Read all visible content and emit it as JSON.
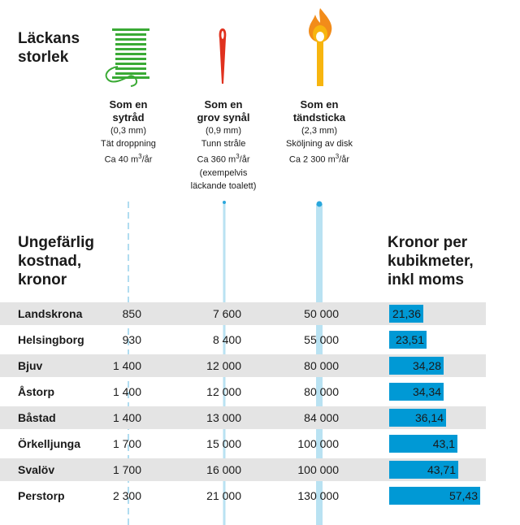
{
  "heading": {
    "leak_size_line1": "Läckans",
    "leak_size_line2": "storlek",
    "cost_line1": "Ungefärlig",
    "cost_line2": "kostnad,",
    "cost_line3": "kronor",
    "price_line1": "Kronor per",
    "price_line2": "kubikmeter,",
    "price_line3": "inkl moms"
  },
  "leak_types": [
    {
      "icon": "thread-spool-icon",
      "title_line1": "Som en",
      "title_line2": "sytråd",
      "size": "(0,3 mm)",
      "desc1": "Tät droppning",
      "desc2_prefix": "Ca 40 m",
      "desc2_sup": "3",
      "desc2_suffix": "/år",
      "desc3": "",
      "desc4": ""
    },
    {
      "icon": "needle-icon",
      "title_line1": "Som en",
      "title_line2": "grov synål",
      "size": "(0,9 mm)",
      "desc1": "Tunn stråle",
      "desc2_prefix": "Ca 360 m",
      "desc2_sup": "3",
      "desc2_suffix": "/år",
      "desc3": "(exempelvis",
      "desc4": "läckande toalett)"
    },
    {
      "icon": "match-icon",
      "title_line1": "Som en",
      "title_line2": "tändsticka",
      "size": "(2,3 mm)",
      "desc1": "Sköljning av disk",
      "desc2_prefix": "Ca 2 300 m",
      "desc2_sup": "3",
      "desc2_suffix": "/år",
      "desc3": "",
      "desc4": ""
    }
  ],
  "colors": {
    "thread_green": "#3aaa35",
    "needle_red": "#e0311e",
    "match_yellow": "#f7b50f",
    "flame_orange": "#f28c1a",
    "bar_blue": "#0099d5",
    "row_shade": "#e4e4e4",
    "line_light_blue": "#b9e2f2"
  },
  "rows": [
    {
      "municipality": "Landskrona",
      "cost1": "850",
      "cost2": "7 600",
      "cost3": "50 000",
      "price": 21.36,
      "price_label": "21,36"
    },
    {
      "municipality": "Helsingborg",
      "cost1": "930",
      "cost2": "8 400",
      "cost3": "55 000",
      "price": 23.51,
      "price_label": "23,51"
    },
    {
      "municipality": "Bjuv",
      "cost1": "1 400",
      "cost2": "12 000",
      "cost3": "80 000",
      "price": 34.28,
      "price_label": "34,28"
    },
    {
      "municipality": "Åstorp",
      "cost1": "1 400",
      "cost2": "12 000",
      "cost3": "80 000",
      "price": 34.34,
      "price_label": "34,34"
    },
    {
      "municipality": "Båstad",
      "cost1": "1 400",
      "cost2": "13 000",
      "cost3": "84 000",
      "price": 36.14,
      "price_label": "36,14"
    },
    {
      "municipality": "Örkelljunga",
      "cost1": "1 700",
      "cost2": "15 000",
      "cost3": "100 000",
      "price": 43.1,
      "price_label": "43,1"
    },
    {
      "municipality": "Svalöv",
      "cost1": "1 700",
      "cost2": "16 000",
      "cost3": "100 000",
      "price": 43.71,
      "price_label": "43,71"
    },
    {
      "municipality": "Perstorp",
      "cost1": "2 300",
      "cost2": "21 000",
      "cost3": "130 000",
      "price": 57.43,
      "price_label": "57,43"
    }
  ]
}
